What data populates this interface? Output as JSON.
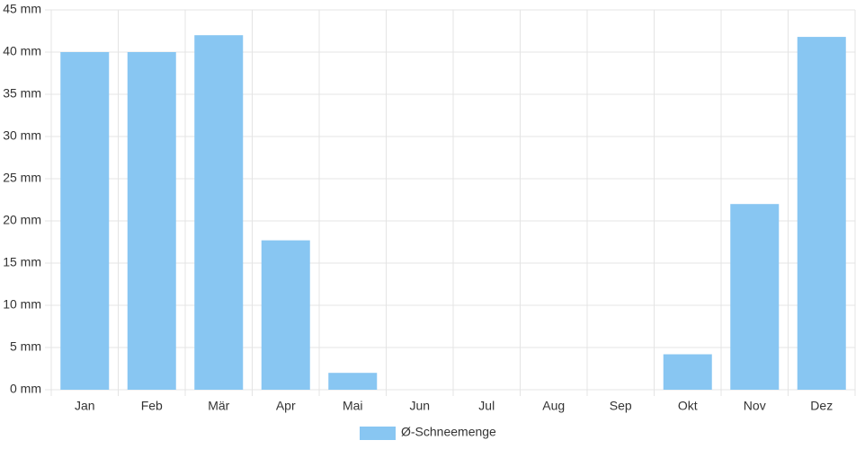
{
  "chart_data": {
    "type": "bar",
    "categories": [
      "Jan",
      "Feb",
      "Mär",
      "Apr",
      "Mai",
      "Jun",
      "Jul",
      "Aug",
      "Sep",
      "Okt",
      "Nov",
      "Dez"
    ],
    "series": [
      {
        "name": "Ø-Schneemenge",
        "color": "#88c6f2",
        "values": [
          40,
          40,
          42,
          17.7,
          2,
          0,
          0,
          0,
          0,
          4.2,
          22,
          41.8
        ]
      }
    ],
    "ylim": [
      0,
      45
    ],
    "yticks": [
      {
        "value": 0,
        "label": "0 mm"
      },
      {
        "value": 5,
        "label": "5 mm"
      },
      {
        "value": 10,
        "label": "10 mm"
      },
      {
        "value": 15,
        "label": "15 mm"
      },
      {
        "value": 20,
        "label": "20 mm"
      },
      {
        "value": 25,
        "label": "25 mm"
      },
      {
        "value": 30,
        "label": "30 mm"
      },
      {
        "value": 35,
        "label": "35 mm"
      },
      {
        "value": 40,
        "label": "40 mm"
      },
      {
        "value": 45,
        "label": "45 mm"
      }
    ],
    "grid": true,
    "legend": "bottom"
  }
}
